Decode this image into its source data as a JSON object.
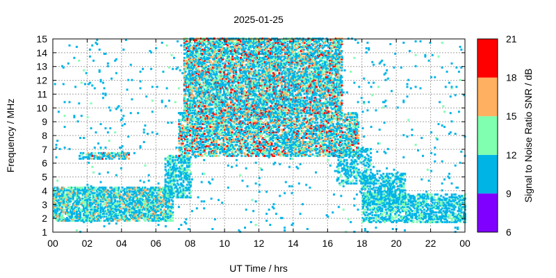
{
  "chart_data": {
    "type": "heatmap",
    "title": "2025-01-25",
    "xlabel": "UT Time / hrs",
    "ylabel": "Frequency / MHz",
    "xlim": [
      0,
      24
    ],
    "ylim": [
      1,
      15
    ],
    "x_ticks": [
      "00",
      "02",
      "04",
      "06",
      "08",
      "10",
      "12",
      "14",
      "16",
      "18",
      "20",
      "22",
      "00"
    ],
    "y_ticks": [
      "1",
      "2",
      "3",
      "4",
      "5",
      "6",
      "7",
      "8",
      "9",
      "10",
      "11",
      "12",
      "13",
      "14",
      "15"
    ],
    "grid": true,
    "colorbar": {
      "label": "Signal to Noise Ratio SNR / dB",
      "range": [
        6,
        21
      ],
      "ticks": [
        "6",
        "9",
        "12",
        "15",
        "18",
        "21"
      ],
      "bands": [
        {
          "min": 6,
          "max": 9,
          "color": "#8000ff"
        },
        {
          "min": 9,
          "max": 12,
          "color": "#00b4e6"
        },
        {
          "min": 12,
          "max": 15,
          "color": "#80ffb0"
        },
        {
          "min": 15,
          "max": 18,
          "color": "#ffb060"
        },
        {
          "min": 18,
          "max": 21,
          "color": "#ff0000"
        }
      ]
    },
    "activity_regions": [
      {
        "t": [
          0.0,
          7.0
        ],
        "f": [
          1.8,
          4.3
        ],
        "density": 0.55,
        "snr": [
          9,
          17
        ]
      },
      {
        "t": [
          1.5,
          4.5
        ],
        "f": [
          6.3,
          6.7
        ],
        "density": 0.5,
        "snr": [
          9,
          19
        ]
      },
      {
        "t": [
          6.5,
          8.0
        ],
        "f": [
          3.5,
          6.5
        ],
        "density": 0.45,
        "snr": [
          9,
          15
        ]
      },
      {
        "t": [
          7.3,
          17.8
        ],
        "f": [
          6.5,
          9.6
        ],
        "density": 0.5,
        "snr": [
          9,
          20
        ]
      },
      {
        "t": [
          7.6,
          16.8
        ],
        "f": [
          9.6,
          15.0
        ],
        "density": 0.55,
        "snr": [
          9,
          20
        ]
      },
      {
        "t": [
          16.5,
          18.5
        ],
        "f": [
          4.5,
          7.0
        ],
        "density": 0.3,
        "snr": [
          9,
          14
        ]
      },
      {
        "t": [
          18.0,
          20.5
        ],
        "f": [
          3.0,
          5.2
        ],
        "density": 0.45,
        "snr": [
          9,
          14
        ]
      },
      {
        "t": [
          18.0,
          24.0
        ],
        "f": [
          1.7,
          3.8
        ],
        "density": 0.45,
        "snr": [
          9,
          15
        ]
      },
      {
        "t": [
          0.0,
          24.0
        ],
        "f": [
          1.0,
          15.0
        ],
        "density": 0.015,
        "snr": [
          9,
          13
        ]
      }
    ]
  }
}
